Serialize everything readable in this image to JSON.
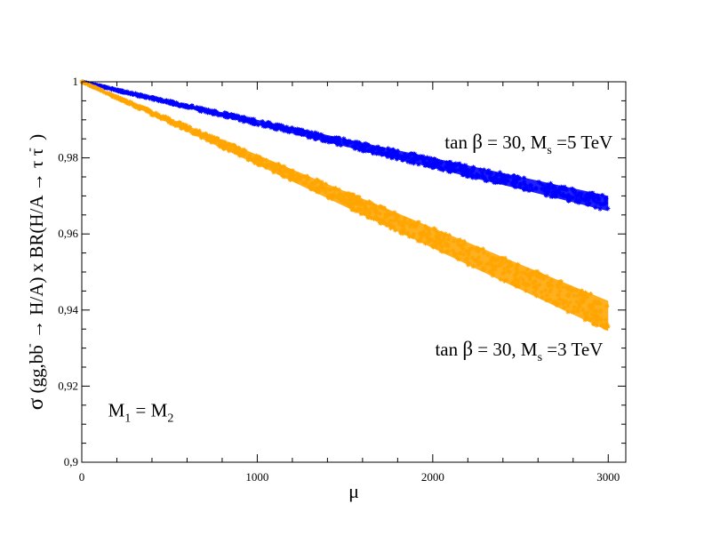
{
  "chart_data": {
    "type": "scatter",
    "title": "",
    "xlabel": "μ",
    "ylabel_parts": {
      "sigma": "σ",
      "main": "(gg,bb",
      "bbar_accent": "-",
      "rest": " → H/A) x BR(H/A  → τ τ",
      "taubar_accent": "-",
      "close": ")"
    },
    "xlim": [
      0,
      3100
    ],
    "ylim": [
      0.9,
      1.0
    ],
    "x_major_ticks": [
      0,
      1000,
      2000,
      3000
    ],
    "x_tick_labels": [
      "0",
      "1000",
      "2000",
      "3000"
    ],
    "y_major_ticks": [
      0.9,
      0.92,
      0.94,
      0.96,
      0.98,
      1.0
    ],
    "y_tick_labels": [
      "0,9",
      "0,92",
      "0,94",
      "0,96",
      "0,98",
      "1"
    ],
    "series": [
      {
        "name": "tan β = 30, Ms = 5 TeV",
        "color": "#0000ff",
        "marker": "star",
        "x": [
          0,
          250,
          500,
          750,
          1000,
          1250,
          1500,
          1750,
          2000,
          2250,
          2500,
          2750,
          3000
        ],
        "y_upper": [
          1.0,
          0.9975,
          0.995,
          0.9925,
          0.99,
          0.9875,
          0.985,
          0.9825,
          0.98,
          0.9775,
          0.975,
          0.9725,
          0.97
        ],
        "y_lower": [
          1.0,
          0.997,
          0.9943,
          0.9914,
          0.9887,
          0.9858,
          0.983,
          0.9801,
          0.9774,
          0.9745,
          0.9718,
          0.9689,
          0.966
        ]
      },
      {
        "name": "tan β = 30, Ms = 3 TeV",
        "color": "#ffa500",
        "marker": "star",
        "x": [
          0,
          250,
          500,
          750,
          1000,
          1250,
          1500,
          1750,
          2000,
          2250,
          2500,
          2750,
          3000
        ],
        "y_upper": [
          1.0,
          0.9952,
          0.9904,
          0.9856,
          0.9808,
          0.976,
          0.9712,
          0.9664,
          0.9616,
          0.9568,
          0.952,
          0.9472,
          0.9424
        ],
        "y_lower": [
          1.0,
          0.9945,
          0.9891,
          0.9836,
          0.9782,
          0.9727,
          0.9672,
          0.9617,
          0.9563,
          0.9508,
          0.9454,
          0.9399,
          0.9345
        ]
      }
    ],
    "annotations": [
      {
        "prefix": "tan ",
        "beta": "β",
        "mid": " = 30, M",
        "sub": "s",
        "suffix": " =5 TeV",
        "anchor_x": 3025,
        "anchor_y": 0.9825
      },
      {
        "prefix": "tan ",
        "beta": "β",
        "mid": " = 30, M",
        "sub": "s",
        "suffix": " =3 TeV",
        "anchor_x": 2970,
        "anchor_y": 0.928
      },
      {
        "m": "M",
        "sub1": "1",
        "eq": " = M",
        "sub2": "2",
        "anchor_x": 150,
        "anchor_y": 0.912
      }
    ]
  }
}
